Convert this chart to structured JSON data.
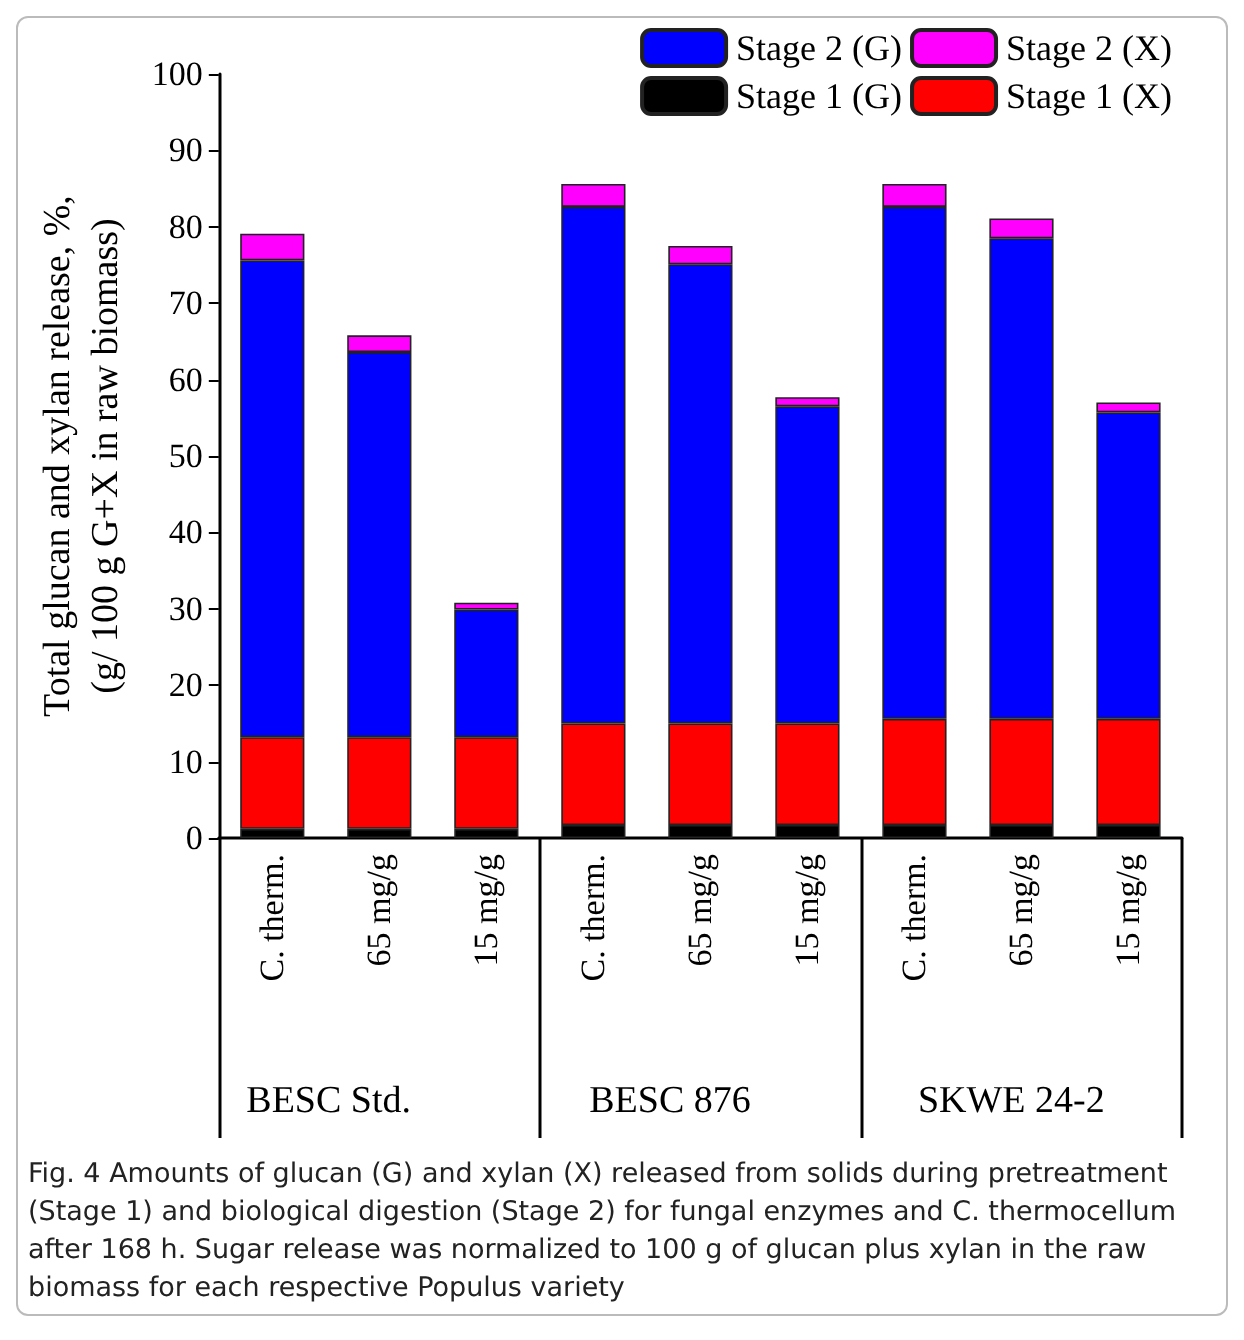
{
  "chart_data": {
    "type": "bar",
    "stacked": true,
    "ylabel": "Total glucan and xylan release, %,\n(g/ 100 g G+X in raw biomass)",
    "categories": [
      "C. therm.",
      "65 mg/g",
      "15 mg/g",
      "C. therm.",
      "65 mg/g",
      "15 mg/g",
      "C. therm.",
      "65 mg/g",
      "15 mg/g"
    ],
    "series": [
      {
        "name": "Stage 1 (G)",
        "color": "#000000",
        "values": [
          1.2,
          1.2,
          1.2,
          1.7,
          1.7,
          1.7,
          1.7,
          1.7,
          1.7
        ]
      },
      {
        "name": "Stage 1 (X)",
        "color": "#ff0000",
        "values": [
          12.0,
          12.0,
          12.0,
          13.3,
          13.3,
          13.3,
          13.9,
          13.9,
          13.9
        ]
      },
      {
        "name": "Stage 2 (G)",
        "color": "#0000ff",
        "values": [
          62.4,
          50.4,
          16.7,
          67.6,
          60.1,
          41.5,
          67.0,
          62.9,
          40.1
        ]
      },
      {
        "name": "Stage 2 (X)",
        "color": "#ff00ff",
        "values": [
          3.5,
          2.2,
          0.9,
          3.0,
          2.4,
          1.2,
          3.0,
          2.6,
          1.3
        ]
      }
    ],
    "ylim": [
      0,
      100
    ],
    "yticks": [
      0,
      10,
      20,
      30,
      40,
      50,
      60,
      70,
      80,
      90,
      100
    ],
    "grid": false,
    "legend": "top right",
    "annotations": [
      "BESC Std.",
      "BESC 876",
      "SKWE 24-2",
      "Fig. 4 Amounts of glucan (G) and xylan (X) released from solids during pretreatment (Stage 1) and biological digestion (Stage 2) for fungal enzymes and C. thermocellum after 168 h. Sugar release was normalized to 100 g of glucan plus xylan in the raw biomass for each respective Populus variety"
    ]
  }
}
